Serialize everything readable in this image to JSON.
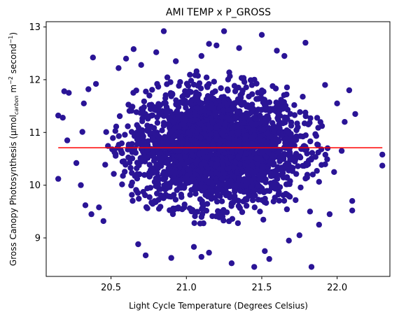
{
  "chart_data": {
    "type": "scatter",
    "title": "AMI TEMP x P_GROSS",
    "xlabel": "Light Cycle Temperature (Degrees Celsius)",
    "ylabel": {
      "prefix": "Gross Canopy Photosynthesis (μmol",
      "sub": "carbon",
      "mid": " m",
      "sup1": "−2",
      "mid2": " second",
      "sup2": "−1",
      "suffix": ")"
    },
    "xlim": [
      20.07,
      22.35
    ],
    "ylim": [
      8.27,
      13.1
    ],
    "x_ticks": [
      {
        "value": 20.5,
        "label": "20.5"
      },
      {
        "value": 21.0,
        "label": "21.0"
      },
      {
        "value": 21.5,
        "label": "21.5"
      },
      {
        "value": 22.0,
        "label": "22.0"
      }
    ],
    "y_ticks": [
      {
        "value": 9,
        "label": "9"
      },
      {
        "value": 10,
        "label": "10"
      },
      {
        "value": 11,
        "label": "11"
      },
      {
        "value": 12,
        "label": "12"
      },
      {
        "value": 13,
        "label": "13"
      }
    ],
    "grid": false,
    "colors": {
      "points": "#2a1496",
      "fit_line": "#ff0000"
    },
    "cloud": {
      "center": [
        21.2,
        10.72
      ],
      "spread": [
        0.28,
        0.55
      ],
      "n": 2600
    },
    "points": [
      [
        20.15,
        11.32
      ],
      [
        20.18,
        11.28
      ],
      [
        20.19,
        11.78
      ],
      [
        20.22,
        11.75
      ],
      [
        20.15,
        10.12
      ],
      [
        20.21,
        10.85
      ],
      [
        20.27,
        10.42
      ],
      [
        20.31,
        11.01
      ],
      [
        20.32,
        11.55
      ],
      [
        20.35,
        11.82
      ],
      [
        20.38,
        12.42
      ],
      [
        20.3,
        10.0
      ],
      [
        20.33,
        9.62
      ],
      [
        20.37,
        9.45
      ],
      [
        20.45,
        9.32
      ],
      [
        20.42,
        9.58
      ],
      [
        20.4,
        11.92
      ],
      [
        20.55,
        12.22
      ],
      [
        20.6,
        12.4
      ],
      [
        20.65,
        12.58
      ],
      [
        20.7,
        12.28
      ],
      [
        20.68,
        8.88
      ],
      [
        20.73,
        8.67
      ],
      [
        20.8,
        12.52
      ],
      [
        20.9,
        8.62
      ],
      [
        20.85,
        12.92
      ],
      [
        20.93,
        12.35
      ],
      [
        21.1,
        12.45
      ],
      [
        21.15,
        12.68
      ],
      [
        21.05,
        8.83
      ],
      [
        21.1,
        8.64
      ],
      [
        21.15,
        8.72
      ],
      [
        21.2,
        12.65
      ],
      [
        21.25,
        12.92
      ],
      [
        21.35,
        12.6
      ],
      [
        21.3,
        8.52
      ],
      [
        21.45,
        8.45
      ],
      [
        21.5,
        12.85
      ],
      [
        21.55,
        8.6
      ],
      [
        21.52,
        8.75
      ],
      [
        21.6,
        12.55
      ],
      [
        21.65,
        12.45
      ],
      [
        21.68,
        8.95
      ],
      [
        21.75,
        9.05
      ],
      [
        21.79,
        12.7
      ],
      [
        21.83,
        8.45
      ],
      [
        21.82,
        9.5
      ],
      [
        21.88,
        9.25
      ],
      [
        21.92,
        11.9
      ],
      [
        21.95,
        9.45
      ],
      [
        22.0,
        11.55
      ],
      [
        22.05,
        11.2
      ],
      [
        22.08,
        11.8
      ],
      [
        22.1,
        9.7
      ],
      [
        22.1,
        9.52
      ],
      [
        22.12,
        11.35
      ],
      [
        22.3,
        10.58
      ],
      [
        22.3,
        10.37
      ],
      [
        21.98,
        10.25
      ],
      [
        22.03,
        10.65
      ]
    ],
    "fit_line": {
      "x": [
        20.15,
        22.3
      ],
      "y": [
        10.71,
        10.71
      ]
    }
  }
}
